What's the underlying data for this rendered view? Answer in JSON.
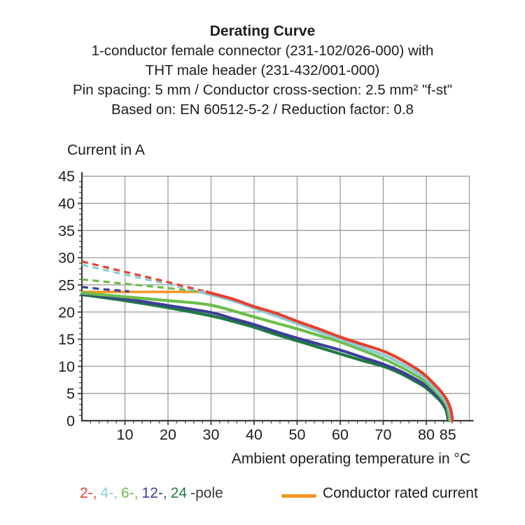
{
  "title_block": {
    "title": "Derating Curve",
    "subtitle_lines": [
      "1-conductor female connector (231-102/026-000) with",
      "THT male header (231-432/001-000)",
      "Pin spacing: 5 mm / Conductor cross-section: 2.5 mm² \"f-st\"",
      "Based on: EN 60512-5-2 / Reduction factor: 0.8"
    ]
  },
  "chart_data": {
    "type": "line",
    "title": "Derating Curve",
    "xlabel": "Ambient operating temperature in °C",
    "ylabel": "Current in A",
    "xlim": [
      0,
      90
    ],
    "ylim": [
      0,
      45
    ],
    "x_ticks": [
      10,
      20,
      30,
      40,
      50,
      60,
      70,
      80,
      85
    ],
    "y_ticks": [
      0,
      5,
      10,
      15,
      20,
      25,
      30,
      35,
      40,
      45
    ],
    "grid": true,
    "grid_color": "#9c9c9c",
    "axis_color": "#3c3c3c",
    "rated_current": {
      "name": "Conductor rated current",
      "color": "#f49523",
      "points": [
        [
          0,
          23.7
        ],
        [
          27.5,
          23.7
        ]
      ]
    },
    "series": [
      {
        "name": "24-pole",
        "color": "#1e7b41",
        "dashed_points": [],
        "solid_points": [
          [
            0,
            23.2
          ],
          [
            10,
            22.1
          ],
          [
            20,
            20.8
          ],
          [
            30,
            19.3
          ],
          [
            35,
            18.3
          ],
          [
            40,
            17.2
          ],
          [
            45,
            15.9
          ],
          [
            50,
            14.7
          ],
          [
            55,
            13.5
          ],
          [
            60,
            12.3
          ],
          [
            65,
            11.1
          ],
          [
            70,
            10.0
          ],
          [
            74,
            8.7
          ],
          [
            78,
            7.0
          ],
          [
            80,
            6.0
          ],
          [
            82,
            4.6
          ],
          [
            83.5,
            3.4
          ],
          [
            84.6,
            1.9
          ],
          [
            85.1,
            0
          ]
        ]
      },
      {
        "name": "12-pole",
        "color": "#3e3f97",
        "dashed_points": [
          [
            0,
            24.6
          ],
          [
            5,
            24.2
          ],
          [
            11,
            23.8
          ]
        ],
        "solid_points": [
          [
            0,
            23.4
          ],
          [
            10,
            22.4
          ],
          [
            20,
            21.2
          ],
          [
            30,
            19.9
          ],
          [
            35,
            18.8
          ],
          [
            40,
            17.7
          ],
          [
            45,
            16.4
          ],
          [
            50,
            15.2
          ],
          [
            55,
            14.1
          ],
          [
            60,
            13.0
          ],
          [
            65,
            11.7
          ],
          [
            70,
            10.4
          ],
          [
            74,
            9.1
          ],
          [
            78,
            7.4
          ],
          [
            80,
            6.4
          ],
          [
            82,
            5.0
          ],
          [
            83.5,
            3.8
          ],
          [
            84.7,
            2.2
          ],
          [
            85.2,
            0
          ]
        ]
      },
      {
        "name": "6-pole",
        "color": "#6cbe4a",
        "dashed_points": [
          [
            0,
            26.0
          ],
          [
            10,
            25.2
          ],
          [
            20,
            24.4
          ],
          [
            27,
            23.8
          ]
        ],
        "solid_points": [
          [
            0,
            23.5
          ],
          [
            10,
            22.8
          ],
          [
            20,
            22.1
          ],
          [
            27,
            21.6
          ],
          [
            32,
            20.9
          ],
          [
            40,
            19.1
          ],
          [
            45,
            18.0
          ],
          [
            50,
            16.9
          ],
          [
            55,
            15.7
          ],
          [
            60,
            14.5
          ],
          [
            65,
            13.0
          ],
          [
            70,
            11.4
          ],
          [
            74,
            9.9
          ],
          [
            78,
            8.1
          ],
          [
            80,
            7.0
          ],
          [
            82,
            5.5
          ],
          [
            83.5,
            4.2
          ],
          [
            84.8,
            2.6
          ],
          [
            85.4,
            0
          ]
        ]
      },
      {
        "name": "4-pole",
        "color": "#8accd6",
        "dashed_points": [
          [
            0,
            28.7
          ],
          [
            10,
            26.9
          ],
          [
            20,
            25.1
          ],
          [
            27.5,
            23.7
          ]
        ],
        "solid_points": [
          [
            27.5,
            23.7
          ],
          [
            35,
            22.1
          ],
          [
            40,
            20.7
          ],
          [
            45,
            19.3
          ],
          [
            50,
            17.9
          ],
          [
            55,
            16.4
          ],
          [
            60,
            15.0
          ],
          [
            65,
            13.5
          ],
          [
            70,
            12.1
          ],
          [
            74,
            10.6
          ],
          [
            78,
            8.8
          ],
          [
            80,
            7.6
          ],
          [
            82,
            6.0
          ],
          [
            83.5,
            4.7
          ],
          [
            84.8,
            3.2
          ],
          [
            85.5,
            1.6
          ],
          [
            85.9,
            0
          ]
        ]
      },
      {
        "name": "2-pole",
        "color": "#e8402f",
        "dashed_points": [
          [
            0,
            29.3
          ],
          [
            10,
            27.4
          ],
          [
            20,
            25.5
          ],
          [
            29,
            23.7
          ]
        ],
        "solid_points": [
          [
            29,
            23.7
          ],
          [
            35,
            22.4
          ],
          [
            40,
            21.0
          ],
          [
            45,
            19.8
          ],
          [
            50,
            18.3
          ],
          [
            55,
            16.9
          ],
          [
            60,
            15.4
          ],
          [
            65,
            14.1
          ],
          [
            70,
            12.8
          ],
          [
            74,
            11.3
          ],
          [
            78,
            9.4
          ],
          [
            80,
            8.2
          ],
          [
            82,
            6.6
          ],
          [
            83.5,
            5.3
          ],
          [
            84.8,
            3.8
          ],
          [
            85.7,
            2.0
          ],
          [
            86.1,
            0
          ]
        ]
      }
    ]
  },
  "legend": {
    "pole_items": [
      {
        "label": "2-,",
        "color": "#e8402f"
      },
      {
        "label": "4-,",
        "color": "#8accd6"
      },
      {
        "label": "6-,",
        "color": "#6cbe4a"
      },
      {
        "label": "12-,",
        "color": "#3e3f97"
      },
      {
        "label": "24",
        "color": "#1e7b41"
      }
    ],
    "pole_suffix": "-pole",
    "rated_label": "Conductor rated current",
    "rated_color": "#f49523"
  }
}
